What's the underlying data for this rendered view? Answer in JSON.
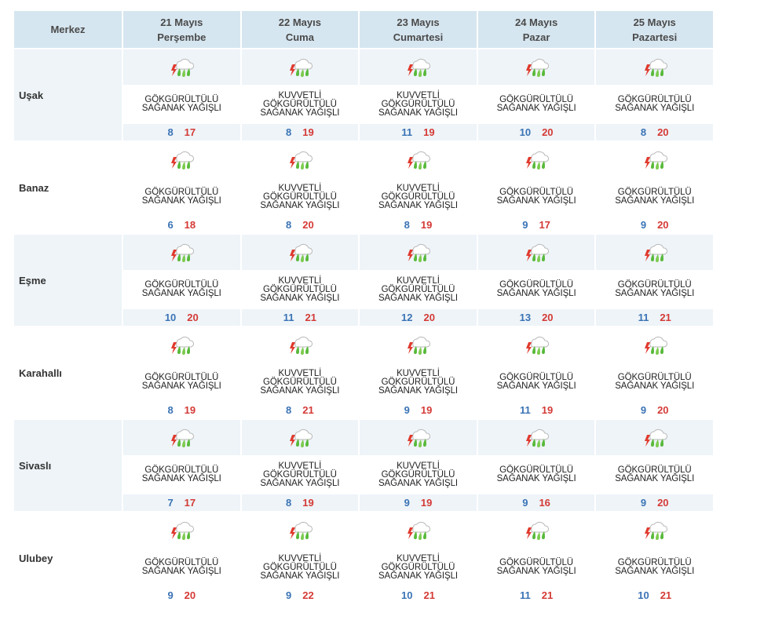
{
  "header": {
    "location_label": "Merkez",
    "days": [
      {
        "date": "21 Mayıs",
        "weekday": "Perşembe"
      },
      {
        "date": "22 Mayıs",
        "weekday": "Cuma"
      },
      {
        "date": "23 Mayıs",
        "weekday": "Cumartesi"
      },
      {
        "date": "24 Mayıs",
        "weekday": "Pazar"
      },
      {
        "date": "25 Mayıs",
        "weekday": "Pazartesi"
      }
    ]
  },
  "icons": {
    "weather": "thunderstorm-rain-icon"
  },
  "colors": {
    "header_bg": "#d6e6f0",
    "row_shade": "#eef4f8",
    "min_temp": "#3a73b5",
    "max_temp": "#d43a36"
  },
  "rows": [
    {
      "name": "Uşak",
      "days": [
        {
          "desc": "GÖKGÜRÜLTÜLÜ\nSAĞANAK YAĞIŞLI",
          "min": "8",
          "max": "17"
        },
        {
          "desc": "KUVVETLİ\nGÖKGÜRÜLTÜLÜ\nSAĞANAK YAĞIŞLI",
          "min": "8",
          "max": "19"
        },
        {
          "desc": "KUVVETLİ\nGÖKGÜRÜLTÜLÜ\nSAĞANAK YAĞIŞLI",
          "min": "11",
          "max": "19"
        },
        {
          "desc": "GÖKGÜRÜLTÜLÜ\nSAĞANAK YAĞIŞLI",
          "min": "10",
          "max": "20"
        },
        {
          "desc": "GÖKGÜRÜLTÜLÜ\nSAĞANAK YAĞIŞLI",
          "min": "8",
          "max": "20"
        }
      ]
    },
    {
      "name": "Banaz",
      "days": [
        {
          "desc": "GÖKGÜRÜLTÜLÜ\nSAĞANAK YAĞIŞLI",
          "min": "6",
          "max": "18"
        },
        {
          "desc": "KUVVETLİ\nGÖKGÜRÜLTÜLÜ\nSAĞANAK YAĞIŞLI",
          "min": "8",
          "max": "20"
        },
        {
          "desc": "KUVVETLİ\nGÖKGÜRÜLTÜLÜ\nSAĞANAK YAĞIŞLI",
          "min": "8",
          "max": "19"
        },
        {
          "desc": "GÖKGÜRÜLTÜLÜ\nSAĞANAK YAĞIŞLI",
          "min": "9",
          "max": "17"
        },
        {
          "desc": "GÖKGÜRÜLTÜLÜ\nSAĞANAK YAĞIŞLI",
          "min": "9",
          "max": "20"
        }
      ]
    },
    {
      "name": "Eşme",
      "days": [
        {
          "desc": "GÖKGÜRÜLTÜLÜ\nSAĞANAK YAĞIŞLI",
          "min": "10",
          "max": "20"
        },
        {
          "desc": "KUVVETLİ\nGÖKGÜRÜLTÜLÜ\nSAĞANAK YAĞIŞLI",
          "min": "11",
          "max": "21"
        },
        {
          "desc": "KUVVETLİ\nGÖKGÜRÜLTÜLÜ\nSAĞANAK YAĞIŞLI",
          "min": "12",
          "max": "20"
        },
        {
          "desc": "GÖKGÜRÜLTÜLÜ\nSAĞANAK YAĞIŞLI",
          "min": "13",
          "max": "20"
        },
        {
          "desc": "GÖKGÜRÜLTÜLÜ\nSAĞANAK YAĞIŞLI",
          "min": "11",
          "max": "21"
        }
      ]
    },
    {
      "name": "Karahallı",
      "days": [
        {
          "desc": "GÖKGÜRÜLTÜLÜ\nSAĞANAK YAĞIŞLI",
          "min": "8",
          "max": "19"
        },
        {
          "desc": "KUVVETLİ\nGÖKGÜRÜLTÜLÜ\nSAĞANAK YAĞIŞLI",
          "min": "8",
          "max": "21"
        },
        {
          "desc": "KUVVETLİ\nGÖKGÜRÜLTÜLÜ\nSAĞANAK YAĞIŞLI",
          "min": "9",
          "max": "19"
        },
        {
          "desc": "GÖKGÜRÜLTÜLÜ\nSAĞANAK YAĞIŞLI",
          "min": "11",
          "max": "19"
        },
        {
          "desc": "GÖKGÜRÜLTÜLÜ\nSAĞANAK YAĞIŞLI",
          "min": "9",
          "max": "20"
        }
      ]
    },
    {
      "name": "Sivaslı",
      "days": [
        {
          "desc": "GÖKGÜRÜLTÜLÜ\nSAĞANAK YAĞIŞLI",
          "min": "7",
          "max": "17"
        },
        {
          "desc": "KUVVETLİ\nGÖKGÜRÜLTÜLÜ\nSAĞANAK YAĞIŞLI",
          "min": "8",
          "max": "19"
        },
        {
          "desc": "KUVVETLİ\nGÖKGÜRÜLTÜLÜ\nSAĞANAK YAĞIŞLI",
          "min": "9",
          "max": "19"
        },
        {
          "desc": "GÖKGÜRÜLTÜLÜ\nSAĞANAK YAĞIŞLI",
          "min": "9",
          "max": "16"
        },
        {
          "desc": "GÖKGÜRÜLTÜLÜ\nSAĞANAK YAĞIŞLI",
          "min": "9",
          "max": "20"
        }
      ]
    },
    {
      "name": "Ulubey",
      "days": [
        {
          "desc": "GÖKGÜRÜLTÜLÜ\nSAĞANAK YAĞIŞLI",
          "min": "9",
          "max": "20"
        },
        {
          "desc": "KUVVETLİ\nGÖKGÜRÜLTÜLÜ\nSAĞANAK YAĞIŞLI",
          "min": "9",
          "max": "22"
        },
        {
          "desc": "KUVVETLİ\nGÖKGÜRÜLTÜLÜ\nSAĞANAK YAĞIŞLI",
          "min": "10",
          "max": "21"
        },
        {
          "desc": "GÖKGÜRÜLTÜLÜ\nSAĞANAK YAĞIŞLI",
          "min": "11",
          "max": "21"
        },
        {
          "desc": "GÖKGÜRÜLTÜLÜ\nSAĞANAK YAĞIŞLI",
          "min": "10",
          "max": "21"
        }
      ]
    }
  ]
}
